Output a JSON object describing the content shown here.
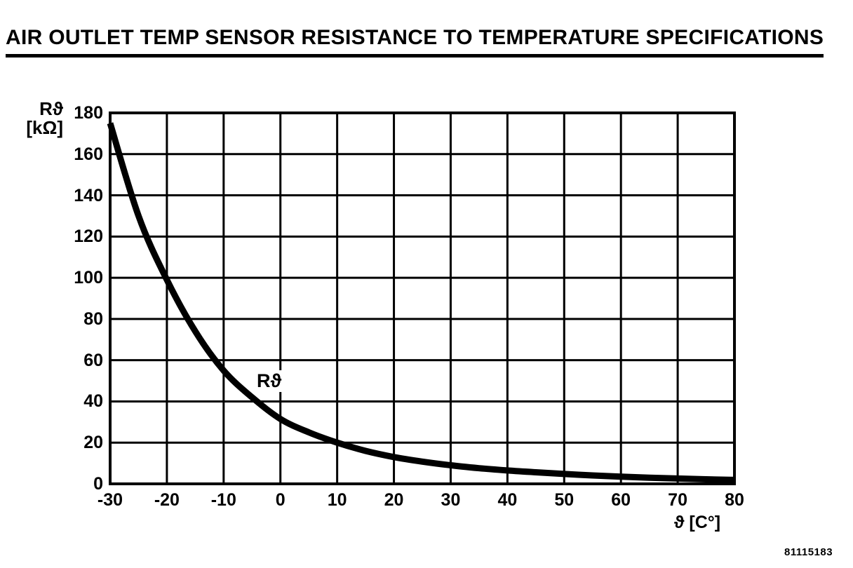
{
  "page": {
    "title": "AIR OUTLET TEMP SENSOR RESISTANCE TO TEMPERATURE SPECIFICATIONS",
    "doc_number": "81115183",
    "background_color": "#ffffff",
    "foreground_color": "#000000"
  },
  "chart_data": {
    "type": "line",
    "title": "AIR OUTLET TEMP SENSOR RESISTANCE TO TEMPERATURE SPECIFICATIONS",
    "xlabel": "ϑ [C°]",
    "ylabel": "Rϑ [kΩ]",
    "ylabel_lines": [
      "Rϑ",
      "[kΩ]"
    ],
    "curve_label": "Rϑ",
    "xlim": [
      -30,
      80
    ],
    "ylim": [
      0,
      180
    ],
    "xticks": [
      -30,
      -20,
      -10,
      0,
      10,
      20,
      30,
      40,
      50,
      60,
      70,
      80
    ],
    "yticks": [
      0,
      20,
      40,
      60,
      80,
      100,
      120,
      140,
      160,
      180
    ],
    "grid": true,
    "legend_position": "none",
    "line_color": "#000000",
    "series": [
      {
        "name": "Rϑ",
        "x": [
          -30,
          -25,
          -20,
          -15,
          -10,
          -5,
          0,
          5,
          10,
          15,
          20,
          25,
          30,
          35,
          40,
          45,
          50,
          55,
          60,
          65,
          70,
          75,
          80
        ],
        "y": [
          175,
          130,
          99,
          74,
          55,
          42,
          31.5,
          25,
          20,
          16,
          13,
          10.8,
          9,
          7.6,
          6.5,
          5.6,
          4.8,
          4.1,
          3.5,
          3.0,
          2.6,
          2.2,
          1.9
        ]
      }
    ]
  }
}
